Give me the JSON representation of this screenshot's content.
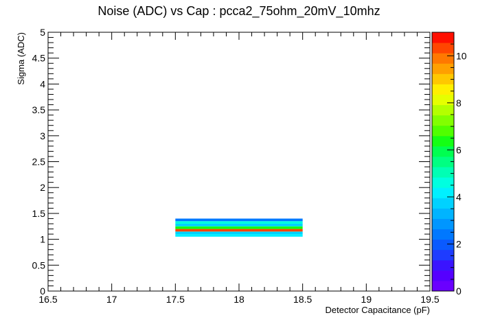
{
  "chart_data": {
    "type": "heatmap",
    "title": "Noise (ADC) vs Cap : pcca2_75ohm_20mV_10mhz",
    "xlabel": "Detector Capacitance (pF)",
    "ylabel": "Sigma (ADC)",
    "xlim": [
      16.5,
      19.5
    ],
    "ylim": [
      0,
      5
    ],
    "x_ticks": [
      "16.5",
      "17",
      "17.5",
      "18",
      "18.5",
      "19",
      "19.5"
    ],
    "y_ticks": [
      "0",
      "0.5",
      "1",
      "1.5",
      "2",
      "2.5",
      "3",
      "3.5",
      "4",
      "4.5",
      "5"
    ],
    "z_range": [
      0,
      11
    ],
    "z_ticks": [
      "0",
      "2",
      "4",
      "6",
      "8",
      "10"
    ],
    "cells": [
      {
        "x0": 17.5,
        "x1": 18.5,
        "y0": 1.05,
        "y1": 1.1,
        "z": 4.2
      },
      {
        "x0": 17.5,
        "x1": 18.5,
        "y0": 1.1,
        "y1": 1.15,
        "z": 3.6
      },
      {
        "x0": 17.5,
        "x1": 18.5,
        "y0": 1.15,
        "y1": 1.2,
        "z": 10.5
      },
      {
        "x0": 17.5,
        "x1": 18.5,
        "y0": 1.2,
        "y1": 1.25,
        "z": 6.5
      },
      {
        "x0": 17.5,
        "x1": 18.5,
        "y0": 1.25,
        "y1": 1.3,
        "z": 3.9
      },
      {
        "x0": 17.5,
        "x1": 18.5,
        "y0": 1.3,
        "y1": 1.35,
        "z": 4.5
      },
      {
        "x0": 17.5,
        "x1": 18.5,
        "y0": 1.35,
        "y1": 1.4,
        "z": 2.5
      }
    ],
    "palette": [
      "#6a00ff",
      "#5500ff",
      "#3a14ff",
      "#1e3cff",
      "#0a5aff",
      "#0078ff",
      "#0096ff",
      "#00b4ff",
      "#00d2ff",
      "#00f0ff",
      "#00ffe0",
      "#00ffb4",
      "#00ff82",
      "#00ff50",
      "#14ff14",
      "#50ff00",
      "#82ff00",
      "#b4ff00",
      "#e6ff00",
      "#fff000",
      "#ffc800",
      "#ffa000",
      "#ff7800",
      "#ff4600",
      "#ff0f00"
    ],
    "grid": false,
    "legend": "color-scale-right"
  }
}
